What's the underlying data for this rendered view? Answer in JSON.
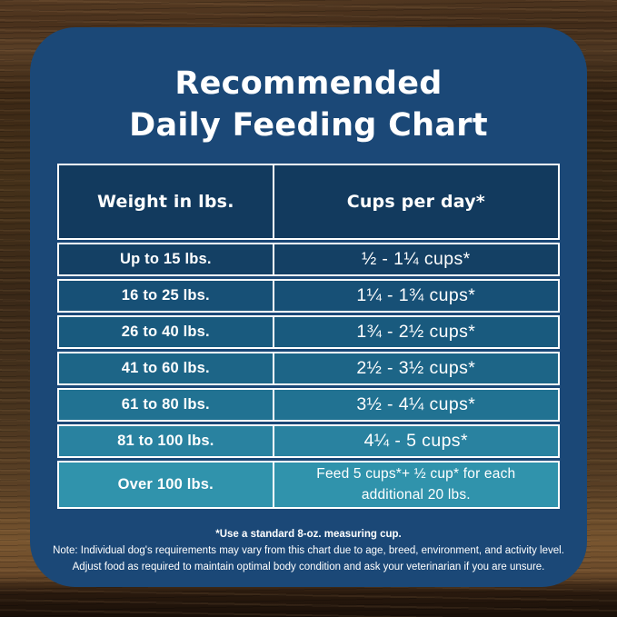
{
  "title": {
    "line1": "Recommended",
    "line2": "Daily Feeding Chart"
  },
  "table": {
    "headers": [
      "Weight in lbs.",
      "Cups per day*"
    ],
    "rows": [
      {
        "weight": "Up to 15 lbs.",
        "cups": "½ - 1¼ cups*"
      },
      {
        "weight": "16 to 25 lbs.",
        "cups": "1¼ - 1¾ cups*"
      },
      {
        "weight": "26 to 40 lbs.",
        "cups": "1¾ - 2½ cups*"
      },
      {
        "weight": "41 to 60 lbs.",
        "cups": "2½ - 3½ cups*"
      },
      {
        "weight": "61 to 80 lbs.",
        "cups": "3½ - 4¼ cups*"
      },
      {
        "weight": "81 to 100 lbs.",
        "cups": "4¼ - 5 cups*"
      },
      {
        "weight": "Over 100 lbs.",
        "cups": "Feed 5 cups*+ ½ cup* for each additional 20 lbs."
      }
    ],
    "row_colors": [
      "#144064",
      "#175076",
      "#195a7e",
      "#1d6587",
      "#217292",
      "#2982a0",
      "#3093ac"
    ]
  },
  "footnotes": {
    "line1": "*Use a standard 8-oz. measuring cup.",
    "line2": "Note: Individual dog's requirements may vary from this chart due to age, breed, environment, and activity level.",
    "line3": "Adjust food as required to maintain optimal body condition and ask your veterinarian if you are unsure."
  },
  "colors": {
    "card_navy": "#1b4877",
    "header_cell": "#123a5e",
    "cell_border": "#ffffff",
    "text": "#ffffff",
    "wood_brown": "#44301a"
  },
  "chart_data": {
    "type": "table",
    "title": "Recommended Daily Feeding Chart",
    "columns": [
      "Weight in lbs.",
      "Cups per day*"
    ],
    "rows": [
      [
        "Up to 15 lbs.",
        "½ - 1¼ cups*"
      ],
      [
        "16 to 25 lbs.",
        "1¼ - 1¾ cups*"
      ],
      [
        "26 to 40 lbs.",
        "1¾ - 2½ cups*"
      ],
      [
        "41 to 60 lbs.",
        "2½ - 3½ cups*"
      ],
      [
        "61 to 80 lbs.",
        "3½ - 4¼ cups*"
      ],
      [
        "81 to 100 lbs.",
        "4¼ - 5 cups*"
      ],
      [
        "Over 100 lbs.",
        "Feed 5 cups*+ ½ cup* for each additional 20 lbs."
      ]
    ],
    "footnotes": [
      "*Use a standard 8-oz. measuring cup.",
      "Note: Individual dog's requirements may vary from this chart due to age, breed, environment, and activity level.",
      "Adjust food as required to maintain optimal body condition and ask your veterinarian if you are unsure."
    ],
    "layout": "two-column table, header row navy, data rows gradient navy-to-teal top-to-bottom"
  }
}
